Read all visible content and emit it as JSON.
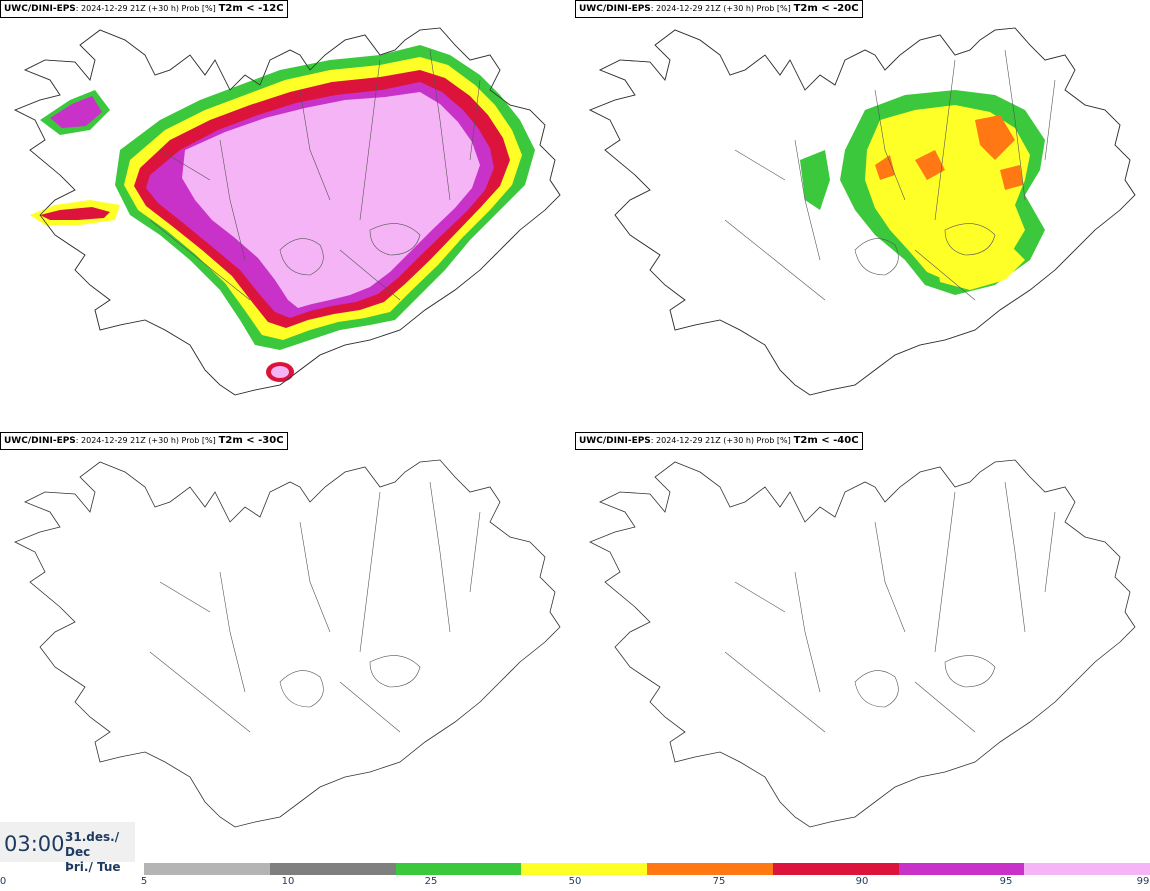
{
  "panels": [
    {
      "model": "UWC/DINI-EPS",
      "desc": ": 2024-12-29 21Z (+30 h) Prob [%]",
      "var": "T2m < -12C",
      "fill": "full"
    },
    {
      "model": "UWC/DINI-EPS",
      "desc": ": 2024-12-29 21Z (+30 h) Prob [%]",
      "var": "T2m < -20C",
      "fill": "partial"
    },
    {
      "model": "UWC/DINI-EPS",
      "desc": ": 2024-12-29 21Z (+30 h) Prob [%]",
      "var": "T2m < -30C",
      "fill": "none"
    },
    {
      "model": "UWC/DINI-EPS",
      "desc": ": 2024-12-29 21Z (+30 h) Prob [%]",
      "var": "T2m < -40C",
      "fill": "none"
    }
  ],
  "time_box": {
    "time": "03:00",
    "date_line1": "31.des./ Dec",
    "date_line2": "Þri./ Tue"
  },
  "legend": {
    "ticks": [
      "0",
      "5",
      "10",
      "25",
      "50",
      "75",
      "90",
      "95",
      "99"
    ],
    "colors": [
      "#b4b4b4",
      "#7f7f7f",
      "#3cc83c",
      "#ffff28",
      "#ff7814",
      "#dc143c",
      "#c832c8",
      "#f5b4f5"
    ]
  }
}
